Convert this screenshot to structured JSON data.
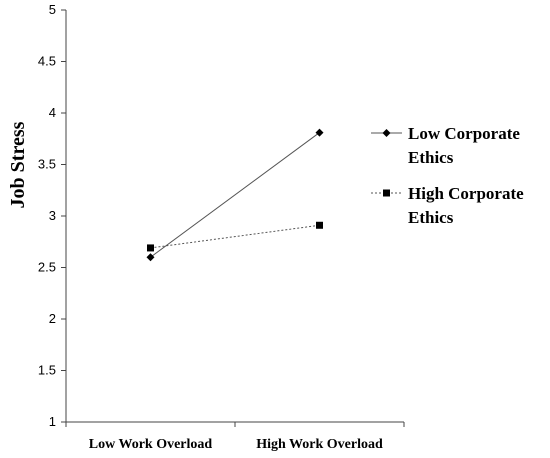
{
  "chart_data": {
    "type": "line",
    "categories": [
      "Low Work Overload",
      "High Work Overload"
    ],
    "ylabel": "Job Stress",
    "xlabel": "",
    "ylim": [
      1,
      5
    ],
    "yticks": [
      "1",
      "1.5",
      "2",
      "2.5",
      "3",
      "3.5",
      "4",
      "4.5",
      "5"
    ],
    "grid": false,
    "legend_position": "right",
    "series": [
      {
        "name_lines": [
          "Low Corporate",
          "Ethics"
        ],
        "values": [
          2.6,
          3.81
        ],
        "marker": "diamond",
        "line_style": "solid",
        "color": "#555555"
      },
      {
        "name_lines": [
          "High Corporate",
          "Ethics"
        ],
        "values": [
          2.69,
          2.91
        ],
        "marker": "square",
        "line_style": "dotted",
        "color": "#555555"
      }
    ]
  }
}
